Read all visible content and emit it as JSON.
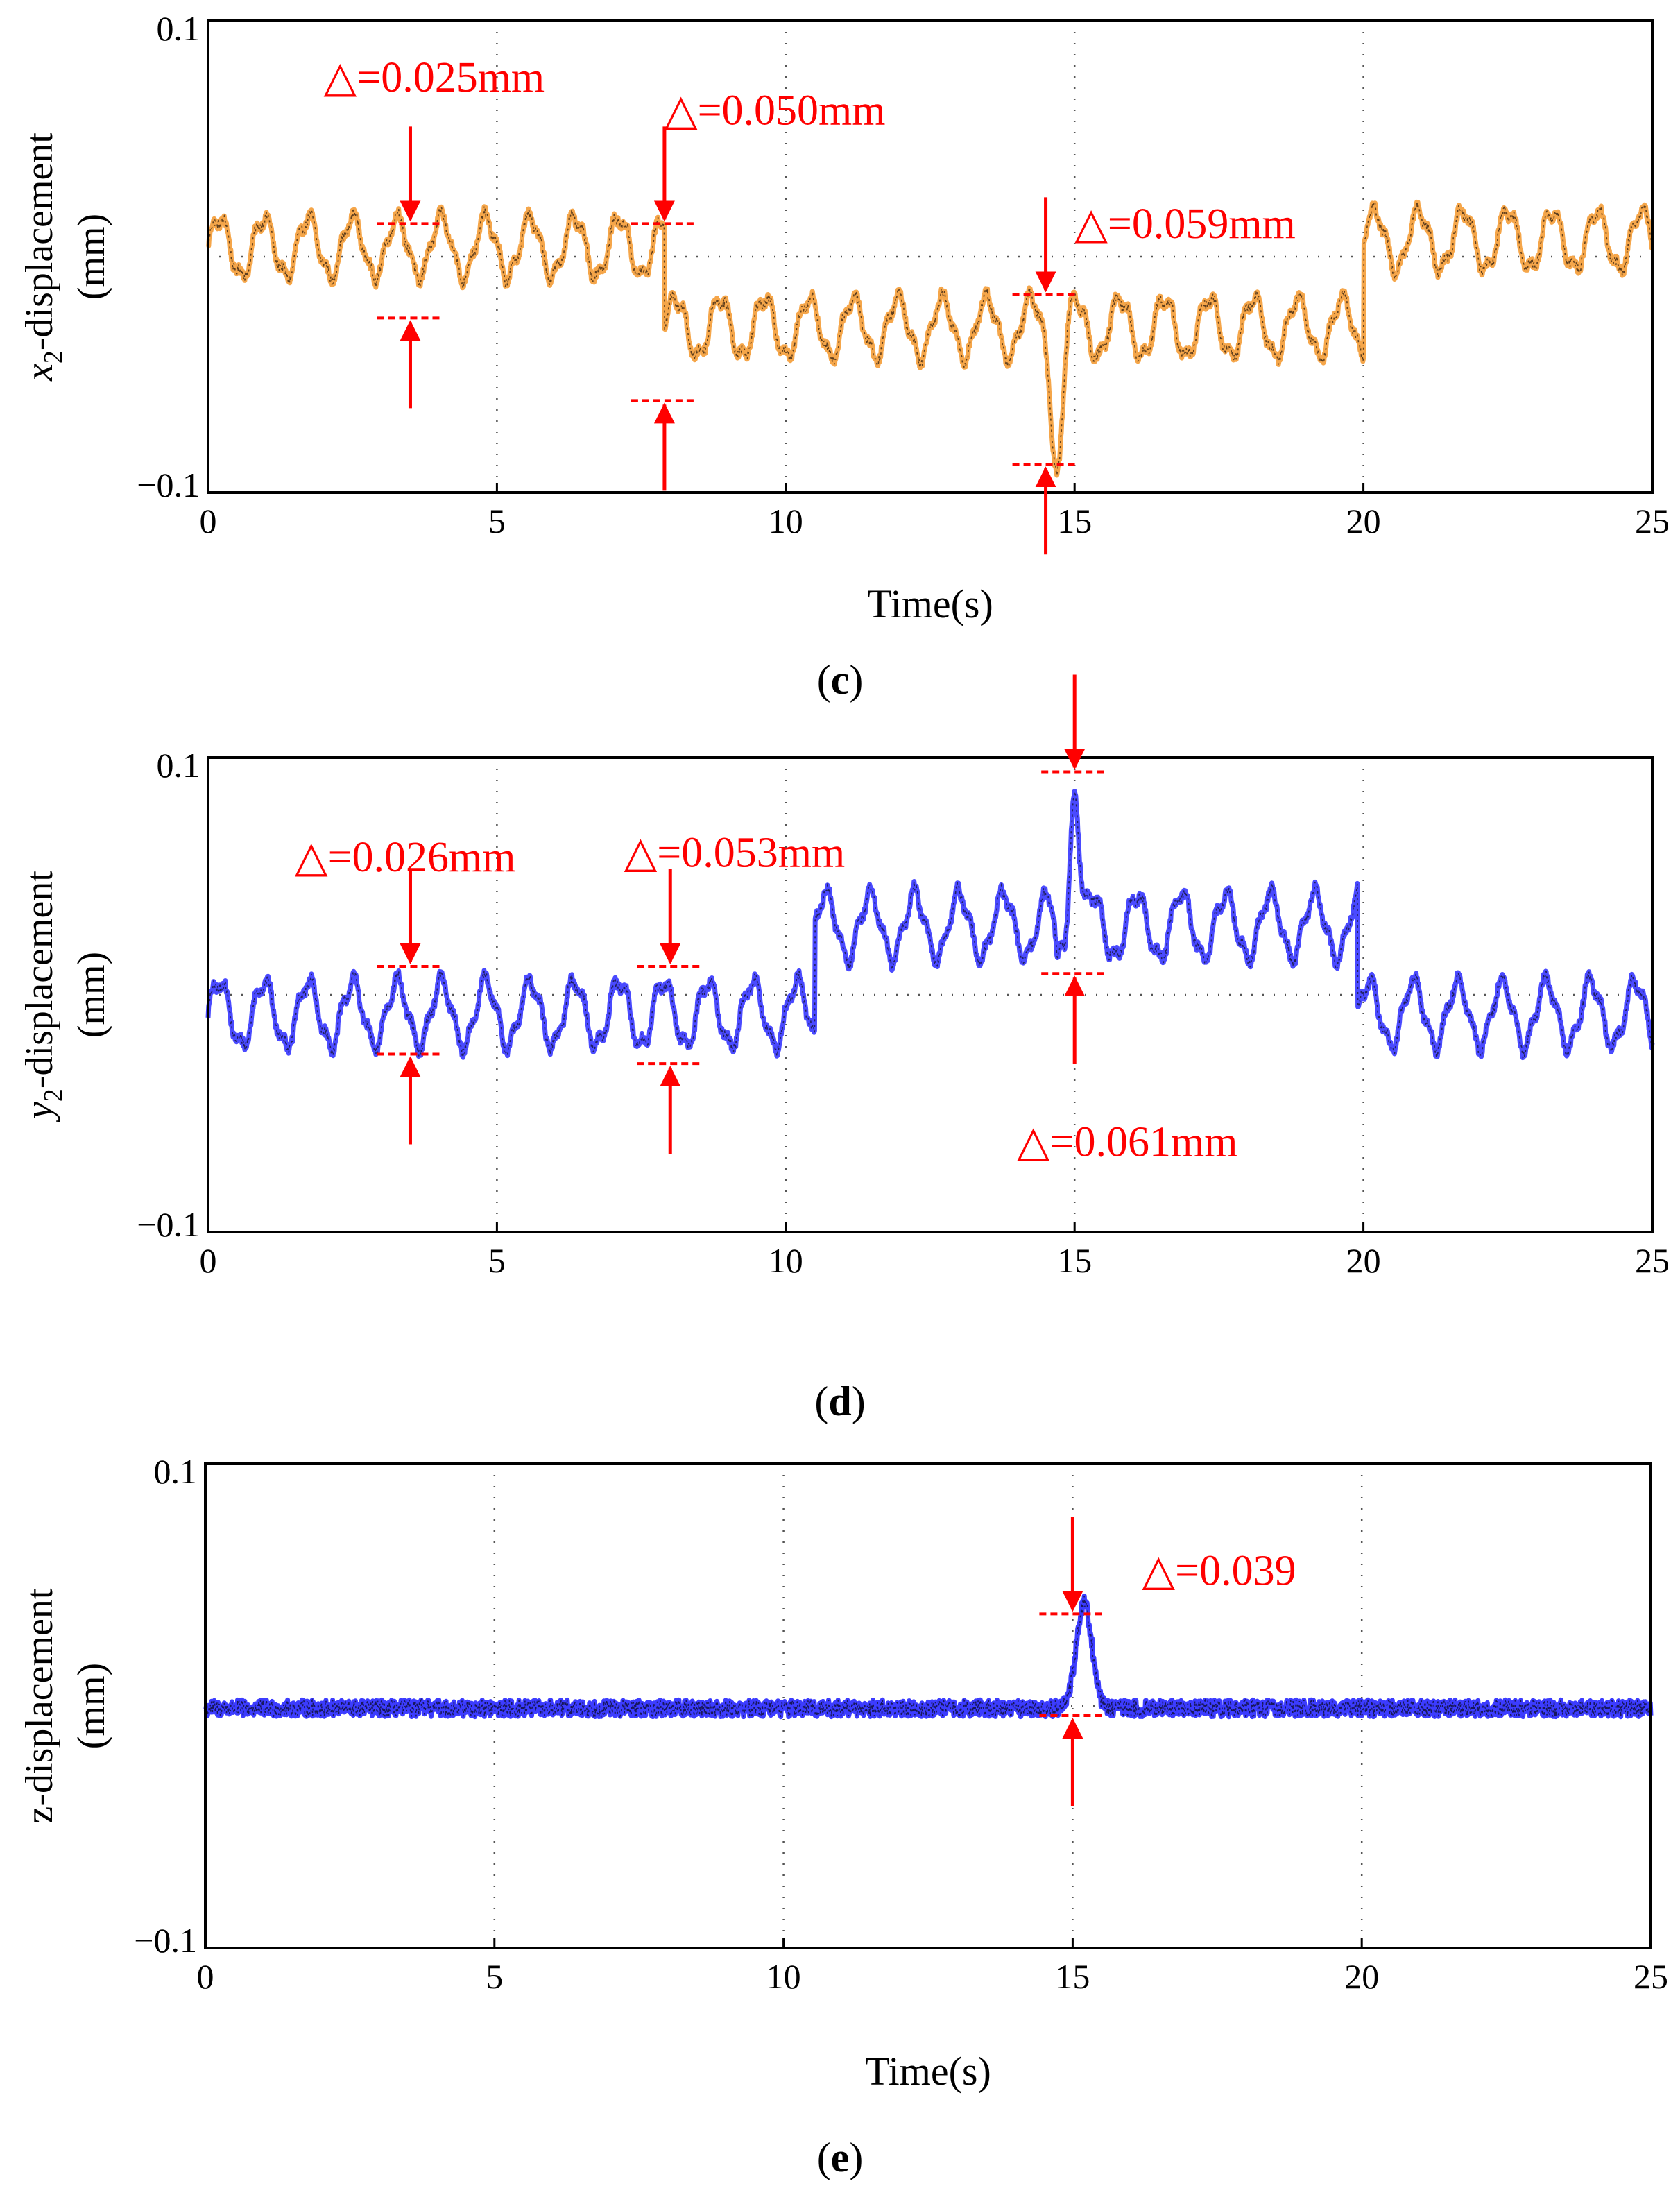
{
  "chart_data": [
    {
      "type": "line",
      "panel_label": "c",
      "caption_open": "(",
      "caption_close": ")",
      "xlabel": "Time(s)",
      "ylabel_var": "x",
      "ylabel_sub": "2",
      "ylabel_rest": "-displacement",
      "ylabel_unit": "(mm)",
      "ylim": [
        -0.1,
        0.1
      ],
      "xlim": [
        0,
        25
      ],
      "y_tick_labels": [
        "0.1",
        "−0.1"
      ],
      "x_tick_labels": [
        "0",
        "5",
        "10",
        "15",
        "20",
        "25"
      ],
      "grid": true,
      "line_color": "#f5a64a",
      "dark_color": "#3a2410",
      "series": [
        {
          "name": "x2-displacement",
          "segments": [
            {
              "t0": 0,
              "t1": 7.9,
              "mean": 0.004,
              "amp": 0.0125,
              "freq": 1.3,
              "noise": 0.002
            },
            {
              "t0": 7.9,
              "t1": 20.0,
              "mean": -0.03,
              "amp": 0.0125,
              "freq": 1.3,
              "noise": 0.002
            },
            {
              "t0": 20.0,
              "t1": 25.0,
              "mean": 0.007,
              "amp": 0.0125,
              "freq": 1.3,
              "noise": 0.002
            }
          ],
          "spikes": [
            {
              "t": 14.7,
              "value": -0.084,
              "width": 0.18
            }
          ]
        }
      ],
      "annotations": [
        {
          "text": "△=0.025mm",
          "t": 3.5,
          "top": 0.014,
          "bottom": -0.026,
          "text_t": 2.0,
          "text_y": 0.07
        },
        {
          "text": "△=0.050mm",
          "t": 7.9,
          "top": 0.014,
          "bottom": -0.061,
          "text_t": 7.9,
          "text_y": 0.056
        },
        {
          "text": "△=0.059mm",
          "t": 14.5,
          "top": -0.016,
          "bottom": -0.088,
          "text_t": 15.0,
          "text_y": 0.008
        }
      ]
    },
    {
      "type": "line",
      "panel_label": "d",
      "caption_open": "(",
      "caption_close": ")",
      "xlabel": "",
      "ylabel_var": "y",
      "ylabel_sub": "2",
      "ylabel_rest": "-displacement",
      "ylabel_unit": "(mm)",
      "ylim": [
        -0.1,
        0.1
      ],
      "xlim": [
        0,
        25
      ],
      "y_tick_labels": [
        "0.1",
        "−0.1"
      ],
      "x_tick_labels": [
        "0",
        "5",
        "10",
        "15",
        "20",
        "25"
      ],
      "grid": true,
      "line_color": "#4a4aff",
      "dark_color": "#14143a",
      "series": [
        {
          "name": "y2-displacement",
          "segments": [
            {
              "t0": 0,
              "t1": 10.5,
              "mean": -0.008,
              "amp": 0.0135,
              "freq": 1.3,
              "noise": 0.002
            },
            {
              "t0": 10.5,
              "t1": 19.9,
              "mean": 0.029,
              "amp": 0.0135,
              "freq": 1.3,
              "noise": 0.002
            },
            {
              "t0": 19.9,
              "t1": 25.0,
              "mean": -0.008,
              "amp": 0.0135,
              "freq": 1.3,
              "noise": 0.002
            }
          ],
          "spikes": [
            {
              "t": 15.0,
              "value": 0.095,
              "width": 0.16
            },
            {
              "t": 14.7,
              "value": 0.01,
              "width": 0.08
            }
          ]
        }
      ],
      "annotations": [
        {
          "text": "△=0.026mm",
          "t": 3.5,
          "top": 0.012,
          "bottom": -0.025,
          "text_t": 1.5,
          "text_y": 0.052
        },
        {
          "text": "△=0.053mm",
          "t": 8.0,
          "top": 0.012,
          "bottom": -0.029,
          "text_t": 7.2,
          "text_y": 0.054
        },
        {
          "text": "△=0.061mm",
          "t": 15.0,
          "top": 0.094,
          "bottom": 0.009,
          "text_t": 14.0,
          "text_y": -0.068
        }
      ]
    },
    {
      "type": "line",
      "panel_label": "e",
      "caption_open": "(",
      "caption_close": ")",
      "xlabel": "Time(s)",
      "ylabel_var": "",
      "ylabel_sub": "",
      "ylabel_rest": "z-displacement",
      "ylabel_unit": "(mm)",
      "ylim": [
        -0.1,
        0.1
      ],
      "xlim": [
        0,
        25
      ],
      "y_tick_labels": [
        "0.1",
        "−0.1"
      ],
      "x_tick_labels": [
        "0",
        "5",
        "10",
        "15",
        "20",
        "25"
      ],
      "grid": true,
      "line_color": "#3c3cff",
      "dark_color": "#0e0e32",
      "series": [
        {
          "name": "z-displacement",
          "segments": [
            {
              "t0": 0,
              "t1": 25.0,
              "mean": -0.001,
              "amp": 0.0,
              "freq": 1.3,
              "noise": 0.0035
            }
          ],
          "spikes": [
            {
              "t": 15.2,
              "value": 0.043,
              "width": 0.28
            }
          ]
        }
      ],
      "annotations": [
        {
          "text": "△=0.039",
          "t": 15.0,
          "top": 0.038,
          "bottom": -0.004,
          "text_t": 16.2,
          "text_y": 0.05
        }
      ]
    }
  ]
}
